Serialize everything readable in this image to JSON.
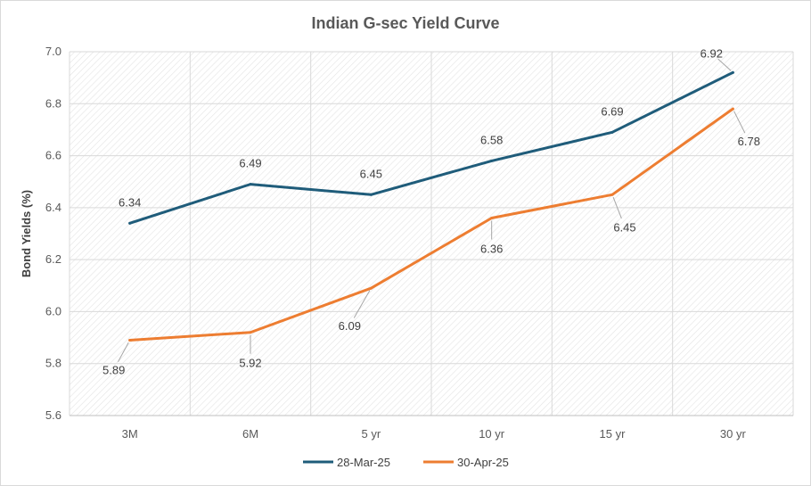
{
  "chart_data": {
    "type": "line",
    "title": "Indian G-sec Yield Curve",
    "xlabel": "",
    "ylabel": "Bond Yields (%)",
    "categories": [
      "3M",
      "6M",
      "5 yr",
      "10 yr",
      "15 yr",
      "30 yr"
    ],
    "ylim": [
      5.6,
      7.0
    ],
    "yticks": [
      "5.6",
      "5.8",
      "6.0",
      "6.2",
      "6.4",
      "6.6",
      "6.8",
      "7.0"
    ],
    "grid": true,
    "legend": "bottom",
    "series": [
      {
        "name": "28-Mar-25",
        "color": "#1f5c7a",
        "values": [
          6.34,
          6.49,
          6.45,
          6.58,
          6.69,
          6.92
        ],
        "labels": [
          "6.34",
          "6.49",
          "6.45",
          "6.58",
          "6.69",
          "6.92"
        ]
      },
      {
        "name": "30-Apr-25",
        "color": "#ed7d31",
        "values": [
          5.89,
          5.92,
          6.09,
          6.36,
          6.45,
          6.78
        ],
        "labels": [
          "5.89",
          "5.92",
          "6.09",
          "6.36",
          "6.45",
          "6.78"
        ]
      }
    ]
  }
}
